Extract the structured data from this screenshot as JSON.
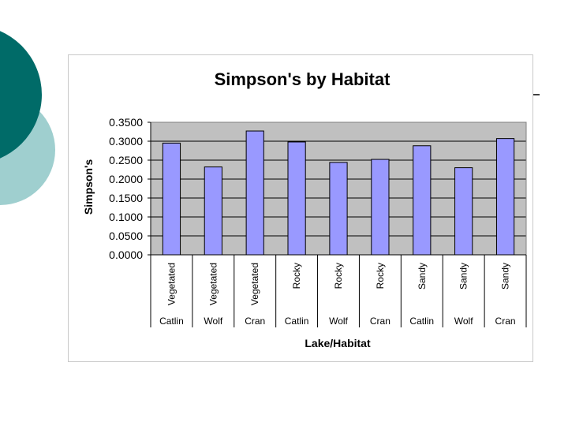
{
  "slide": {
    "accent_dark": "#006b68",
    "accent_light": "#9fcfcf"
  },
  "chart_data": {
    "type": "bar",
    "title": "Simpson's by Habitat",
    "ylabel": "Simpson's",
    "xlabel": "Lake/Habitat",
    "ylim": [
      0,
      0.35
    ],
    "yticks": [
      "0.0000",
      "0.0500",
      "0.1000",
      "0.1500",
      "0.2000",
      "0.2500",
      "0.3000",
      "0.3500"
    ],
    "categories": [
      {
        "habitat": "Vegetated",
        "lake": "Catlin"
      },
      {
        "habitat": "Vegetated",
        "lake": "Wolf"
      },
      {
        "habitat": "Vegetated",
        "lake": "Cran"
      },
      {
        "habitat": "Rocky",
        "lake": "Catlin"
      },
      {
        "habitat": "Rocky",
        "lake": "Wolf"
      },
      {
        "habitat": "Rocky",
        "lake": "Cran"
      },
      {
        "habitat": "Sandy",
        "lake": "Catlin"
      },
      {
        "habitat": "Sandy",
        "lake": "Wolf"
      },
      {
        "habitat": "Sandy",
        "lake": "Cran"
      }
    ],
    "values": [
      0.295,
      0.232,
      0.327,
      0.298,
      0.244,
      0.252,
      0.288,
      0.23,
      0.307
    ],
    "bar_color": "#9999ff",
    "plot_background": "#c0c0c0",
    "grid": true,
    "legend": "none"
  }
}
